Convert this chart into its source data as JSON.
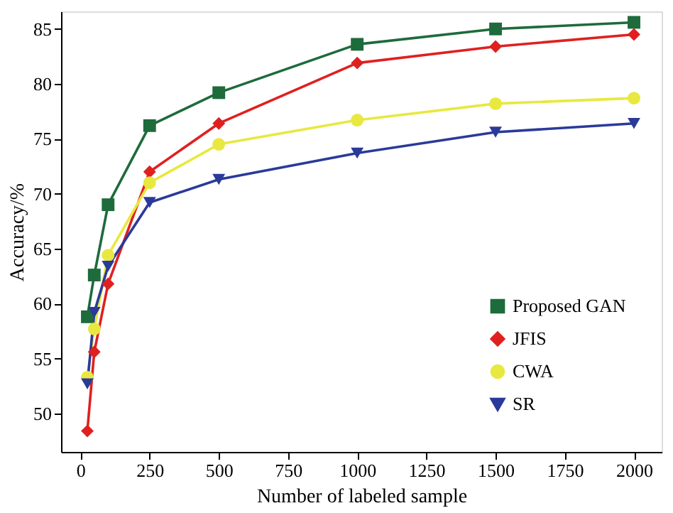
{
  "chart_data": {
    "type": "line",
    "xlabel": "Number of labeled sample",
    "ylabel": "Accuracy/%",
    "x": [
      25,
      50,
      100,
      250,
      500,
      1000,
      1500,
      2000
    ],
    "series": [
      {
        "name": "Proposed GAN",
        "color": "#1e6b3c",
        "marker": "square",
        "values": [
          58.8,
          62.6,
          69.0,
          76.2,
          79.2,
          83.6,
          85.0,
          85.6
        ]
      },
      {
        "name": "JFIS",
        "color": "#e02020",
        "marker": "diamond",
        "values": [
          48.4,
          55.6,
          61.8,
          72.0,
          76.4,
          81.9,
          83.4,
          84.5
        ]
      },
      {
        "name": "CWA",
        "color": "#e8e840",
        "marker": "circle",
        "values": [
          53.3,
          57.7,
          64.4,
          71.0,
          74.5,
          76.7,
          78.2,
          78.7
        ]
      },
      {
        "name": "SR",
        "color": "#2a3a9a",
        "marker": "triangle-down",
        "values": [
          52.7,
          59.2,
          63.4,
          69.2,
          71.3,
          73.7,
          75.6,
          76.4
        ]
      }
    ],
    "xlim": [
      -70,
      2100
    ],
    "xticks": [
      0,
      250,
      500,
      750,
      1000,
      1250,
      1500,
      1750,
      2000
    ],
    "ylim": [
      46.5,
      86.6
    ],
    "yticks": [
      50,
      55,
      60,
      65,
      70,
      75,
      80,
      85
    ],
    "grid": false,
    "legend": "bottom right",
    "line_style": "solid"
  }
}
